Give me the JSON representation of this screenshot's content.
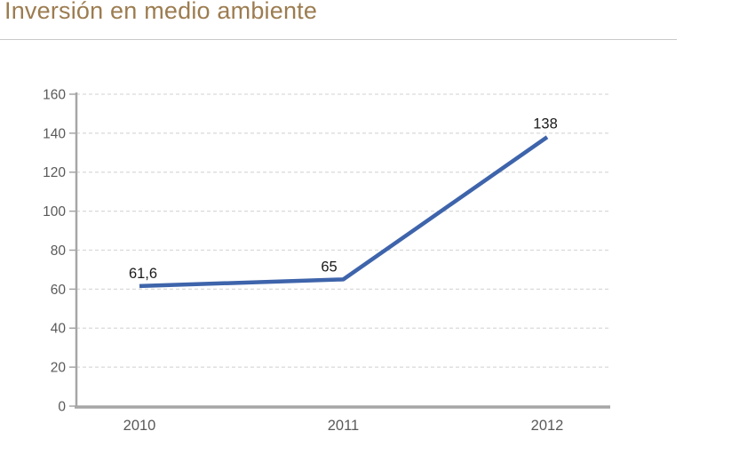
{
  "page": {
    "title": "Inversión en medio ambiente"
  },
  "colors": {
    "title": "#9c7c50",
    "divider": "#c9c9c9",
    "axis_line": "#a6a6a6",
    "tick_label": "#595959",
    "gridline": "#d9d9d9",
    "series_line": "#3e64ab",
    "data_label": "#1a1a1a"
  },
  "chart_data": {
    "type": "line",
    "title": "Inversión en medio ambiente",
    "categories": [
      "2010",
      "2011",
      "2012"
    ],
    "values": [
      61.6,
      65,
      138
    ],
    "value_labels": [
      "61,6",
      "65",
      "138"
    ],
    "series": [
      {
        "name": "Inversión en medio ambiente",
        "values": [
          61.6,
          65,
          138
        ],
        "color": "#3e64ab"
      }
    ],
    "xlabel": "",
    "ylabel": "",
    "ylim": [
      0,
      160
    ],
    "ytick_step": 20,
    "ytick_labels": [
      "0",
      "20",
      "40",
      "60",
      "80",
      "100",
      "120",
      "140",
      "160"
    ],
    "grid": "horizontal-dashed",
    "legend": "none",
    "markers": "none"
  }
}
